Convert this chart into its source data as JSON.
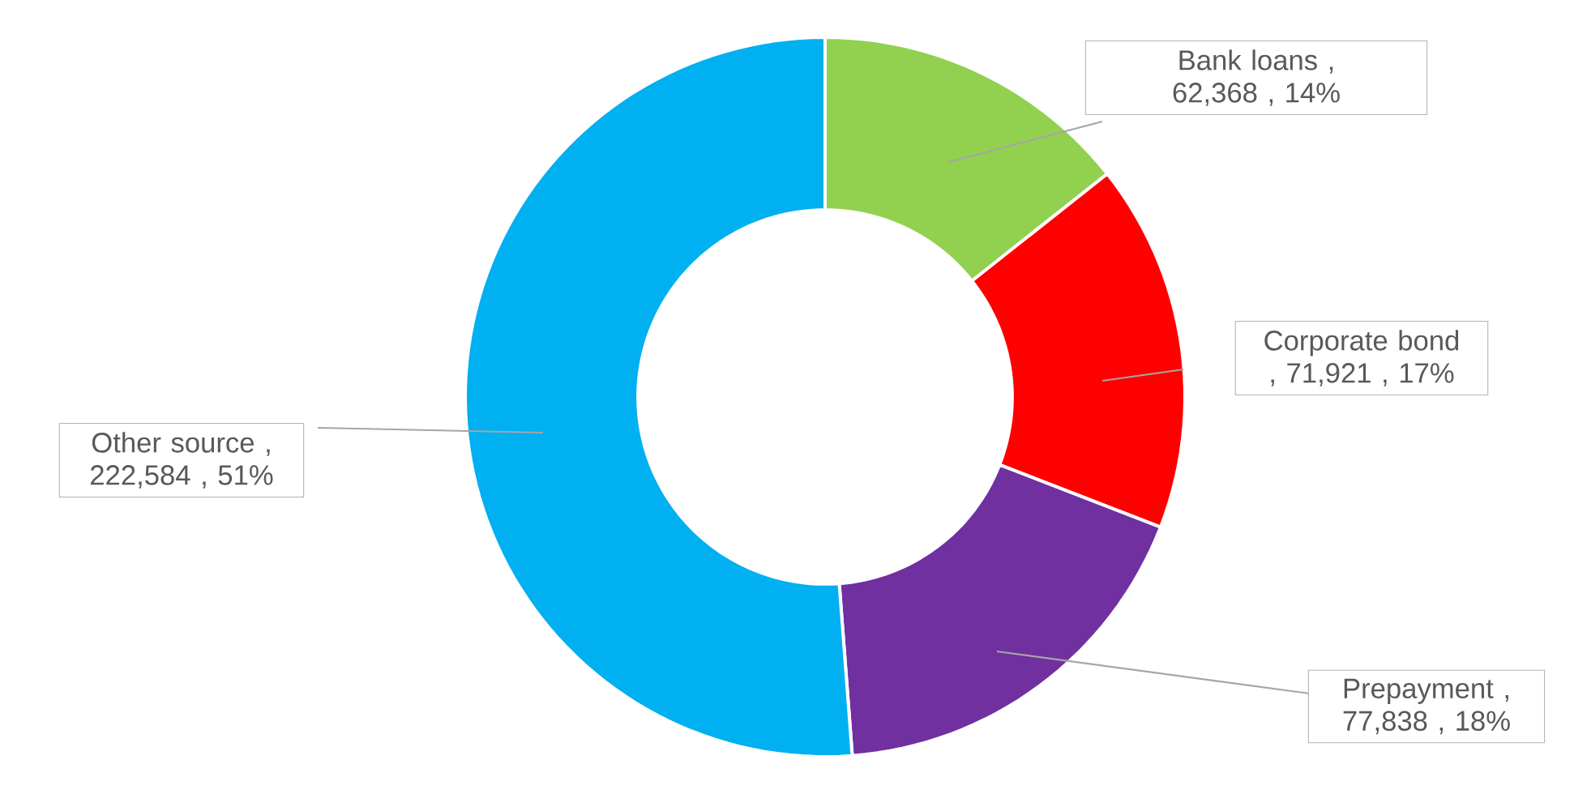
{
  "chart_data": {
    "type": "donut",
    "categories": [
      "Bank loans",
      "Corporate bond",
      "Prepayment",
      "Other source"
    ],
    "values": [
      62368,
      71921,
      77838,
      222584
    ],
    "value_labels": [
      ", 62,368 , 14%",
      ", 71,921 , 17%",
      ", 77,838 , 18%",
      ", 222,584 , 51%"
    ],
    "colors": [
      "#92d050",
      "#ff0000",
      "#7030a0",
      "#00b0f0"
    ]
  }
}
